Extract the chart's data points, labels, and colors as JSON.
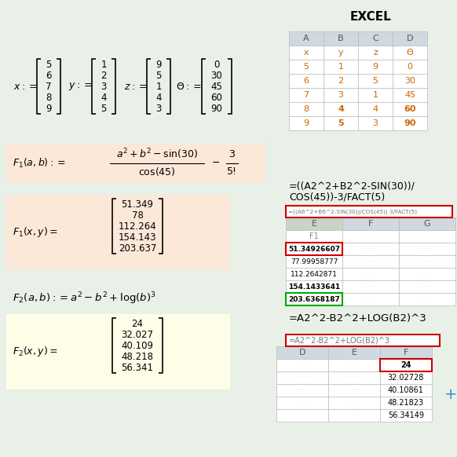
{
  "bg_color": "#e8f0e8",
  "title_excel": "EXCEL",
  "vectors": {
    "x": [
      5,
      6,
      7,
      8,
      9
    ],
    "y": [
      1,
      2,
      3,
      4,
      5
    ],
    "z": [
      9,
      5,
      1,
      4,
      3
    ],
    "theta": [
      0,
      30,
      45,
      60,
      90
    ]
  },
  "excel_table1": {
    "cols": [
      "A",
      "B",
      "C",
      "D"
    ],
    "headers": [
      "x",
      "y",
      "z",
      "Θ"
    ],
    "rows": [
      [
        5,
        1,
        9,
        0
      ],
      [
        6,
        2,
        5,
        30
      ],
      [
        7,
        3,
        1,
        45
      ],
      [
        8,
        4,
        4,
        60
      ],
      [
        9,
        5,
        3,
        90
      ]
    ]
  },
  "f1_results": [
    51.349,
    78,
    112.264,
    154.143,
    203.637
  ],
  "f1_excel_values": [
    "51.34926607",
    "77.99958777",
    "112.2642871",
    "154.1433641",
    "203.6368187"
  ],
  "f2_results": [
    24,
    32.027,
    40.109,
    48.218,
    56.341
  ],
  "f2_excel_values": [
    "24",
    "32.02728",
    "40.10861",
    "48.21823",
    "56.34149"
  ],
  "salmon_bg": "#fce8d8",
  "yellow_bg": "#fefee8",
  "red_border": "#cc0000",
  "green_border": "#00aa00",
  "excel_header_bg": "#d0d8e0",
  "excel_col_e_bg": "#c8d4c8",
  "excel_grid": "#bbbbbb",
  "text_orange": "#cc6600",
  "plus_color": "#4488cc"
}
